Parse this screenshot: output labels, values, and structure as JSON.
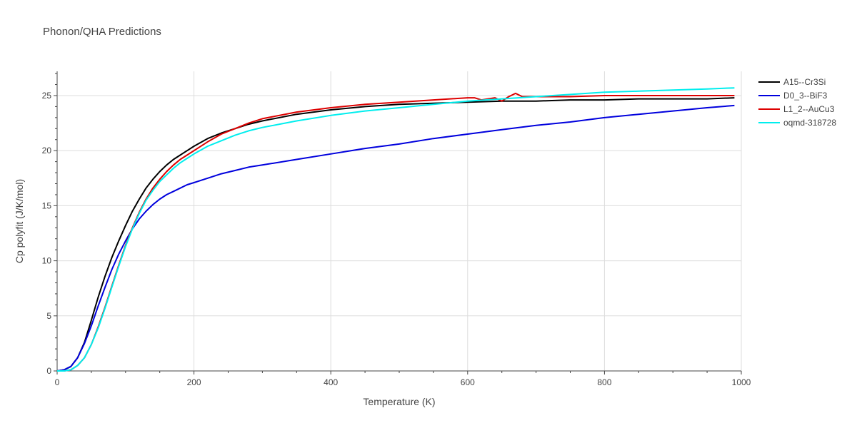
{
  "chart_data": {
    "type": "line",
    "title": "Phonon/QHA Predictions",
    "xlabel": "Temperature (K)",
    "ylabel": "Cp polyfit (J/K/mol)",
    "xlim": [
      0,
      1000
    ],
    "ylim": [
      0,
      27.2
    ],
    "x_ticks": [
      0,
      200,
      400,
      600,
      800,
      1000
    ],
    "y_ticks": [
      0,
      5,
      10,
      15,
      20,
      25
    ],
    "grid": true,
    "legend_position": "top-right",
    "series": [
      {
        "name": "A15--Cr3Si",
        "color": "#000000",
        "x": [
          0,
          10,
          20,
          30,
          40,
          50,
          60,
          70,
          80,
          90,
          100,
          110,
          120,
          130,
          140,
          150,
          160,
          170,
          180,
          190,
          200,
          220,
          240,
          260,
          280,
          300,
          350,
          400,
          450,
          500,
          550,
          600,
          650,
          700,
          750,
          800,
          850,
          900,
          950,
          990
        ],
        "y": [
          0,
          0.1,
          0.4,
          1.2,
          2.6,
          4.6,
          6.7,
          8.6,
          10.3,
          11.8,
          13.2,
          14.5,
          15.6,
          16.6,
          17.4,
          18.1,
          18.7,
          19.2,
          19.6,
          20.0,
          20.4,
          21.1,
          21.6,
          22.0,
          22.4,
          22.7,
          23.3,
          23.7,
          24.0,
          24.2,
          24.3,
          24.4,
          24.5,
          24.5,
          24.6,
          24.6,
          24.7,
          24.7,
          24.7,
          24.8
        ]
      },
      {
        "name": "D0_3--BiF3",
        "color": "#0000dd",
        "x": [
          0,
          10,
          20,
          30,
          40,
          50,
          60,
          70,
          80,
          90,
          100,
          110,
          120,
          130,
          140,
          150,
          160,
          170,
          180,
          190,
          200,
          220,
          240,
          260,
          280,
          300,
          350,
          400,
          450,
          500,
          550,
          600,
          650,
          700,
          750,
          800,
          850,
          900,
          950,
          990
        ],
        "y": [
          0,
          0.1,
          0.4,
          1.2,
          2.5,
          4.1,
          5.9,
          7.6,
          9.2,
          10.6,
          11.8,
          12.9,
          13.8,
          14.5,
          15.1,
          15.6,
          16.0,
          16.3,
          16.6,
          16.9,
          17.1,
          17.5,
          17.9,
          18.2,
          18.5,
          18.7,
          19.2,
          19.7,
          20.2,
          20.6,
          21.1,
          21.5,
          21.9,
          22.3,
          22.6,
          23.0,
          23.3,
          23.6,
          23.9,
          24.1
        ]
      },
      {
        "name": "L1_2--AuCu3",
        "color": "#dd0000",
        "x": [
          0,
          10,
          20,
          30,
          40,
          50,
          60,
          70,
          80,
          90,
          100,
          110,
          120,
          130,
          140,
          150,
          160,
          170,
          180,
          190,
          200,
          220,
          240,
          260,
          280,
          300,
          350,
          400,
          450,
          500,
          550,
          600,
          610,
          620,
          630,
          640,
          650,
          660,
          670,
          680,
          690,
          700,
          750,
          800,
          850,
          900,
          950,
          990
        ],
        "y": [
          0,
          0.0,
          0.1,
          0.5,
          1.2,
          2.4,
          4.0,
          5.8,
          7.7,
          9.6,
          11.4,
          13.0,
          14.4,
          15.6,
          16.6,
          17.4,
          18.1,
          18.7,
          19.2,
          19.6,
          20.0,
          20.8,
          21.5,
          22.0,
          22.5,
          22.9,
          23.5,
          23.9,
          24.2,
          24.4,
          24.6,
          24.8,
          24.8,
          24.6,
          24.7,
          24.8,
          24.5,
          24.9,
          25.2,
          24.9,
          24.9,
          24.9,
          24.9,
          25.0,
          25.0,
          25.0,
          25.0,
          25.0
        ]
      },
      {
        "name": "oqmd-318728",
        "color": "#00eeee",
        "x": [
          0,
          10,
          20,
          30,
          40,
          50,
          60,
          70,
          80,
          90,
          100,
          110,
          120,
          130,
          140,
          150,
          160,
          170,
          180,
          190,
          200,
          220,
          240,
          260,
          280,
          300,
          350,
          400,
          450,
          500,
          550,
          600,
          650,
          700,
          750,
          800,
          850,
          900,
          950,
          990
        ],
        "y": [
          0,
          0.0,
          0.1,
          0.5,
          1.2,
          2.4,
          3.9,
          5.7,
          7.6,
          9.5,
          11.3,
          12.9,
          14.3,
          15.5,
          16.4,
          17.2,
          17.8,
          18.4,
          18.9,
          19.3,
          19.7,
          20.4,
          20.9,
          21.4,
          21.8,
          22.1,
          22.7,
          23.2,
          23.6,
          23.9,
          24.2,
          24.5,
          24.7,
          24.9,
          25.1,
          25.3,
          25.4,
          25.5,
          25.6,
          25.7
        ]
      }
    ]
  }
}
